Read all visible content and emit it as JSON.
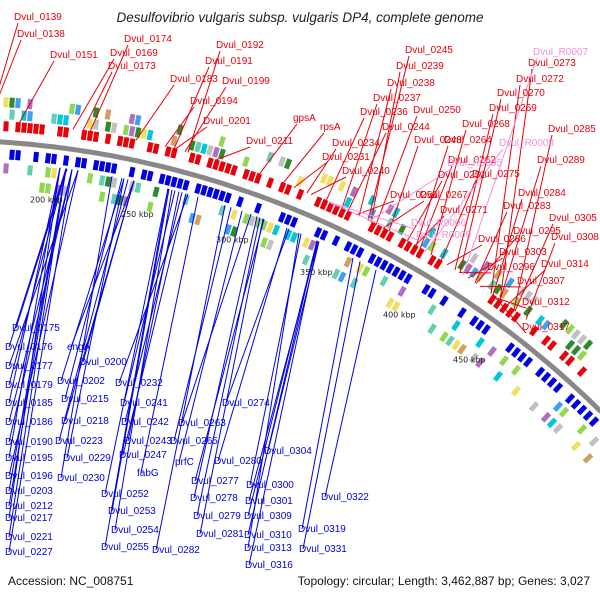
{
  "title": "Desulfovibrio vulgaris subsp. vulgaris DP4, complete genome",
  "footer": {
    "accession": "Accession: NC_008751",
    "summary": "Topology: circular; Length: 3,462,887 bp; Genes: 3,027"
  },
  "ticks": [
    "200 kbp",
    "250 kbp",
    "300 kbp",
    "350 kbp",
    "400 kbp",
    "450 kbp"
  ],
  "colors": {
    "forward": "#e8000b",
    "reverse": "#0000e0",
    "rna": "#f090d8",
    "backbone": "#888888"
  },
  "labels_forward": [
    "Dvul_0139",
    "Dvul_0138",
    "Dvul_0151",
    "Dvul_0174",
    "Dvul_0169",
    "Dvul_0173",
    "Dvul_0192",
    "Dvul_0191",
    "Dvul_0183",
    "Dvul_0199",
    "Dvul_0194",
    "Dvul_0201",
    "Dvul_0211",
    "gpsA",
    "Dvul_0245",
    "Dvul_0239",
    "Dvul_0238",
    "Dvul_0237",
    "Dvul_0236",
    "rpsA",
    "Dvul_0234",
    "Dvul_0231",
    "Dvul_0240",
    "Dvul_0244",
    "Dvul_0250",
    "Dvul_0248",
    "Dvul_0262",
    "Dvul_0251",
    "Dvul_0251",
    "Dvul_0267",
    "Dvul_0271",
    "Dvul_0264",
    "Dvul_0268",
    "Dvul_0269",
    "Dvul_0270",
    "Dvul_0272",
    "Dvul_0273",
    "Dvul_0275",
    "Dvul_0285",
    "Dvul_0289",
    "Dvul_0284",
    "Dvul_0283",
    "Dvul_0286",
    "Dvul_0305",
    "Dvul_0295",
    "Dvul_0308",
    "Dvul_0296",
    "Dvul_0303",
    "Dvul_0314",
    "Dvul_0307",
    "Dvul_0312",
    "Dvul_0317"
  ],
  "labels_rna": [
    "Dvul_R0007",
    "Dvul_R0008",
    "Dvul_R0005",
    "Dvul_R0006",
    "Dvul_R0009"
  ],
  "labels_reverse": [
    "Dvul_0175",
    "Dvul_0176",
    "engA",
    "Dvul_0177",
    "Dvul_0200",
    "Dvul_0179",
    "Dvul_0202",
    "Dvul_0232",
    "Dvul_0185",
    "Dvul_0215",
    "Dvul_0186",
    "Dvul_0218",
    "Dvul_0241",
    "Dvul_0242",
    "Dvul_0190",
    "Dvul_0223",
    "Dvul_0243",
    "Dvul_0265",
    "Dvul_0274",
    "Dvul_0263",
    "Dvul_0195",
    "Dvul_0229",
    "Dvul_0247",
    "Dvul_0196",
    "Dvul_0230",
    "fabG",
    "prfC",
    "Dvul_0280",
    "Dvul_0304",
    "Dvul_0203",
    "Dvul_0252",
    "Dvul_0277",
    "Dvul_0300",
    "Dvul_0212",
    "Dvul_0278",
    "Dvul_0301",
    "Dvul_0217",
    "Dvul_0253",
    "Dvul_0279",
    "Dvul_0309",
    "Dvul_0322",
    "Dvul_0254",
    "Dvul_0281",
    "Dvul_0310",
    "Dvul_0319",
    "Dvul_0221",
    "Dvul_0255",
    "Dvul_0282",
    "Dvul_0313",
    "Dvul_0331",
    "Dvul_0227",
    "Dvul_0316"
  ]
}
